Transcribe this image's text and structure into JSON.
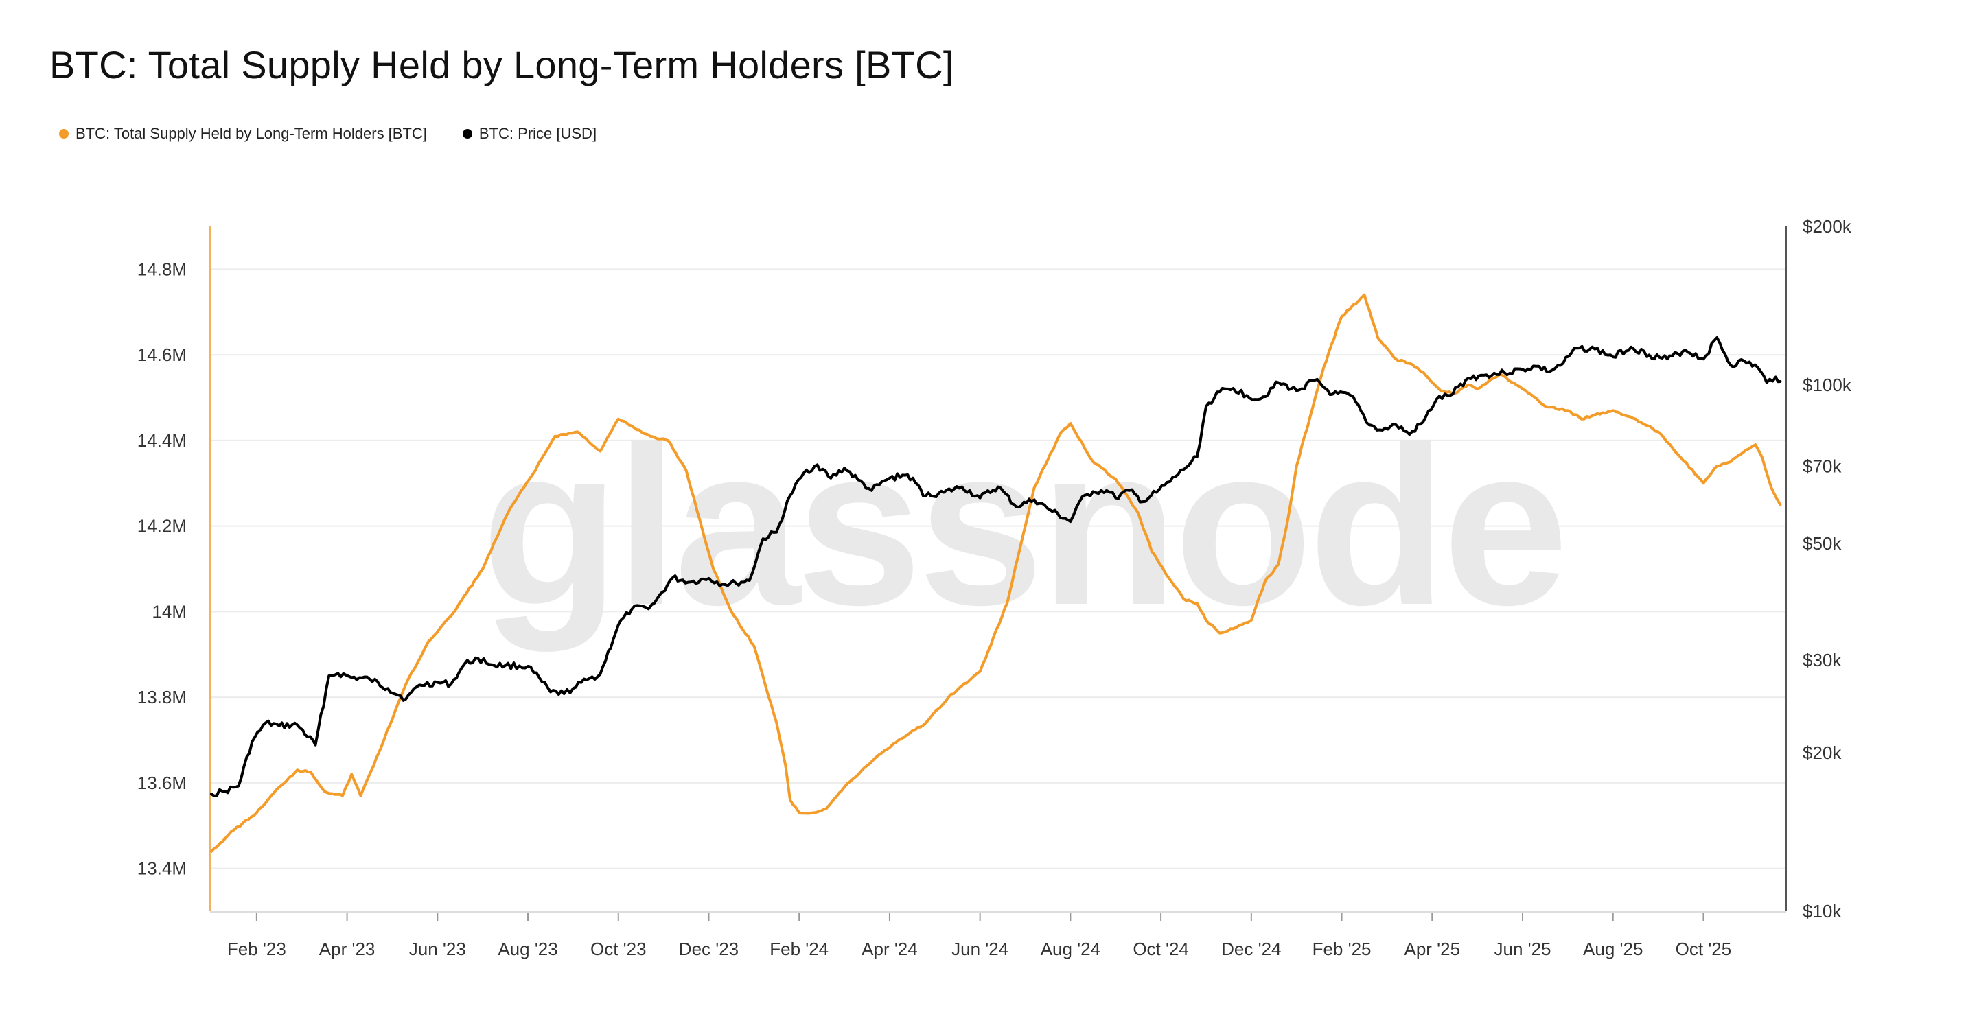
{
  "colors": {
    "supply": "#f39c2a",
    "price": "#000000",
    "grid": "#ececec",
    "axis_left": "#f3b25c",
    "axis_right": "#555555",
    "watermark": "#e9e9e9"
  },
  "watermark": "glassnode",
  "chart_data": {
    "type": "line",
    "title": "BTC: Total Supply Held by Long-Term Holders [BTC]",
    "legend": [
      {
        "label": "BTC: Total Supply Held by Long-Term Holders [BTC]",
        "color": "#f39c2a"
      },
      {
        "label": "BTC: Price [USD]",
        "color": "#000000"
      }
    ],
    "x_ticks": [
      "Feb '23",
      "Apr '23",
      "Jun '23",
      "Aug '23",
      "Oct '23",
      "Dec '23",
      "Feb '24",
      "Apr '24",
      "Jun '24",
      "Aug '24",
      "Oct '24",
      "Dec '24",
      "Feb '25",
      "Apr '25",
      "Jun '25",
      "Aug '25",
      "Oct '25"
    ],
    "x_tick_positions": [
      1.0,
      3.0,
      5.0,
      7.0,
      9.0,
      11.0,
      13.0,
      15.0,
      17.0,
      19.0,
      21.0,
      23.0,
      25.0,
      27.0,
      29.0,
      31.0,
      33.0
    ],
    "x_range": [
      0.0,
      34.8
    ],
    "y_left": {
      "ticks": [
        13400000,
        13600000,
        13800000,
        14000000,
        14200000,
        14400000,
        14600000,
        14800000
      ],
      "tick_labels": [
        "13.4M",
        "13.6M",
        "13.8M",
        "14M",
        "14.2M",
        "14.4M",
        "14.6M",
        "14.8M"
      ],
      "range": [
        13300000,
        14900000
      ]
    },
    "y_right": {
      "scale": "log",
      "ticks": [
        10000,
        20000,
        30000,
        50000,
        70000,
        100000,
        200000
      ],
      "tick_labels": [
        "$10k",
        "$20k",
        "$30k",
        "$50k",
        "$70k",
        "$100k",
        "$200k"
      ],
      "range": [
        10000,
        200000
      ]
    },
    "series": [
      {
        "name": "BTC: Total Supply Held by Long-Term Holders [BTC]",
        "axis": "left",
        "x": [
          0.0,
          0.5,
          1.0,
          1.5,
          1.9,
          2.2,
          2.5,
          2.9,
          3.1,
          3.3,
          3.7,
          4.3,
          4.8,
          5.3,
          6.0,
          6.6,
          7.1,
          7.6,
          8.1,
          8.6,
          9.0,
          9.7,
          10.1,
          10.5,
          11.1,
          11.5,
          12.0,
          12.5,
          12.7,
          12.8,
          13.0,
          13.3,
          13.6,
          14.0,
          14.2,
          14.5,
          14.7,
          15.2,
          15.8,
          16.3,
          17.0,
          17.6,
          18.2,
          18.8,
          19.0,
          19.5,
          20.0,
          20.5,
          20.8,
          21.3,
          21.5,
          21.8,
          22.0,
          22.3,
          22.6,
          22.8,
          23.0,
          23.3,
          23.6,
          23.8,
          24.0,
          24.6,
          25.0,
          25.5,
          25.8,
          26.2,
          26.5,
          26.8,
          27.2,
          27.5,
          27.8,
          28.0,
          28.5,
          29.0,
          29.5,
          30.0,
          30.3,
          30.6,
          31.0,
          31.5,
          32.0,
          32.5,
          33.0,
          33.3,
          33.6,
          34.0,
          34.15,
          34.3,
          34.5,
          34.7
        ],
        "values": [
          13440000,
          13490000,
          13530000,
          13590000,
          13630000,
          13625000,
          13580000,
          13570000,
          13620000,
          13570000,
          13670000,
          13830000,
          13930000,
          13990000,
          14100000,
          14240000,
          14320000,
          14410000,
          14420000,
          14375000,
          14450000,
          14410000,
          14400000,
          14330000,
          14100000,
          14000000,
          13920000,
          13740000,
          13640000,
          13560000,
          13530000,
          13530000,
          13540000,
          13590000,
          13610000,
          13640000,
          13660000,
          13700000,
          13740000,
          13800000,
          13860000,
          14020000,
          14290000,
          14420000,
          14440000,
          14350000,
          14310000,
          14230000,
          14140000,
          14060000,
          14030000,
          14020000,
          13980000,
          13950000,
          13960000,
          13970000,
          13980000,
          14070000,
          14110000,
          14210000,
          14340000,
          14570000,
          14690000,
          14740000,
          14640000,
          14590000,
          14580000,
          14560000,
          14515000,
          14510000,
          14530000,
          14520000,
          14555000,
          14520000,
          14480000,
          14470000,
          14450000,
          14460000,
          14470000,
          14450000,
          14420000,
          14360000,
          14300000,
          14340000,
          14350000,
          14380000,
          14390000,
          14360000,
          14290000,
          14250000
        ]
      },
      {
        "name": "BTC: Price [USD]",
        "axis": "right",
        "x": [
          0.0,
          0.3,
          0.6,
          0.9,
          1.2,
          1.5,
          1.9,
          2.3,
          2.6,
          2.8,
          3.1,
          3.5,
          3.9,
          4.3,
          4.6,
          5.0,
          5.3,
          5.6,
          5.9,
          6.2,
          6.5,
          7.0,
          7.5,
          7.8,
          8.0,
          8.3,
          8.6,
          9.0,
          9.3,
          9.6,
          9.8,
          10.2,
          10.6,
          11.0,
          11.3,
          11.6,
          11.9,
          12.2,
          12.5,
          12.8,
          13.1,
          13.4,
          13.7,
          14.0,
          14.3,
          14.6,
          15.0,
          15.4,
          15.8,
          16.2,
          16.6,
          17.0,
          17.4,
          17.8,
          18.2,
          18.6,
          19.0,
          19.2,
          19.5,
          19.8,
          20.0,
          20.3,
          20.6,
          20.9,
          21.2,
          21.5,
          21.8,
          22.0,
          22.3,
          22.6,
          22.9,
          23.2,
          23.6,
          24.0,
          24.4,
          24.8,
          25.2,
          25.6,
          25.9,
          26.2,
          26.5,
          26.8,
          27.1,
          27.4,
          27.8,
          28.2,
          28.6,
          29.0,
          29.3,
          29.6,
          29.9,
          30.2,
          30.6,
          31.0,
          31.4,
          31.8,
          32.2,
          32.6,
          33.0,
          33.3,
          33.6,
          33.9,
          34.2,
          34.4,
          34.6,
          34.7
        ],
        "values": [
          16700,
          16900,
          17300,
          21000,
          22800,
          22500,
          22600,
          20700,
          28000,
          28300,
          27800,
          27600,
          26500,
          25300,
          26900,
          27200,
          27000,
          29500,
          30200,
          29400,
          29300,
          29200,
          26100,
          25900,
          26500,
          27500,
          28200,
          35000,
          37500,
          37800,
          38500,
          43000,
          42200,
          42900,
          41800,
          42000,
          42500,
          51000,
          52500,
          61600,
          68000,
          70500,
          66500,
          69500,
          66000,
          63000,
          66500,
          67500,
          61500,
          62500,
          64000,
          61000,
          64000,
          58700,
          60500,
          57500,
          55000,
          60000,
          62700,
          63000,
          61000,
          63000,
          60000,
          62500,
          65500,
          69000,
          73000,
          91000,
          97000,
          98500,
          95500,
          94000,
          101000,
          97500,
          102000,
          96000,
          95500,
          84000,
          82000,
          84000,
          80500,
          85000,
          94000,
          95500,
          103000,
          104500,
          105500,
          107000,
          108500,
          106000,
          110000,
          117500,
          117000,
          113000,
          118000,
          114000,
          112000,
          116500,
          112000,
          123000,
          109000,
          111000,
          108000,
          101000,
          103500,
          101500
        ]
      }
    ]
  }
}
